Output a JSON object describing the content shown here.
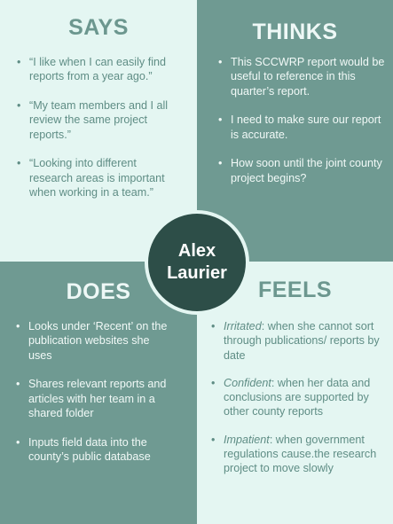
{
  "persona": {
    "first_name": "Alex",
    "last_name": "Laurier"
  },
  "colors": {
    "light": "#e4f6f2",
    "teal": "#6f9a92",
    "dark": "#2d4e48"
  },
  "says": {
    "title": "SAYS",
    "items": [
      "“I like when I can easily find reports from a year ago.”",
      "“My team members and I all review the same project reports.”",
      "“Looking into different research areas is important when working in a team.”"
    ]
  },
  "thinks": {
    "title": "THINKS",
    "items": [
      "This SCCWRP report would be useful to reference in this quarter’s report.",
      "I need to make sure our report is accurate.",
      "How soon until the joint county project begins?"
    ]
  },
  "does": {
    "title": "DOES",
    "items": [
      "Looks under ‘Recent’ on the publication websites she uses",
      "Shares relevant reports and articles with her team in a shared folder",
      "Inputs field data into the county’s public database"
    ]
  },
  "feels": {
    "title": "FEELS",
    "items": [
      {
        "emotion": "Irritated",
        "text": ": when she cannot sort through publications/ reports by date"
      },
      {
        "emotion": "Confident",
        "text": ": when her data and conclusions are supported by other county reports"
      },
      {
        "emotion": "Impatient",
        "text": ": when government regulations cause.the research project to move slowly"
      }
    ]
  }
}
